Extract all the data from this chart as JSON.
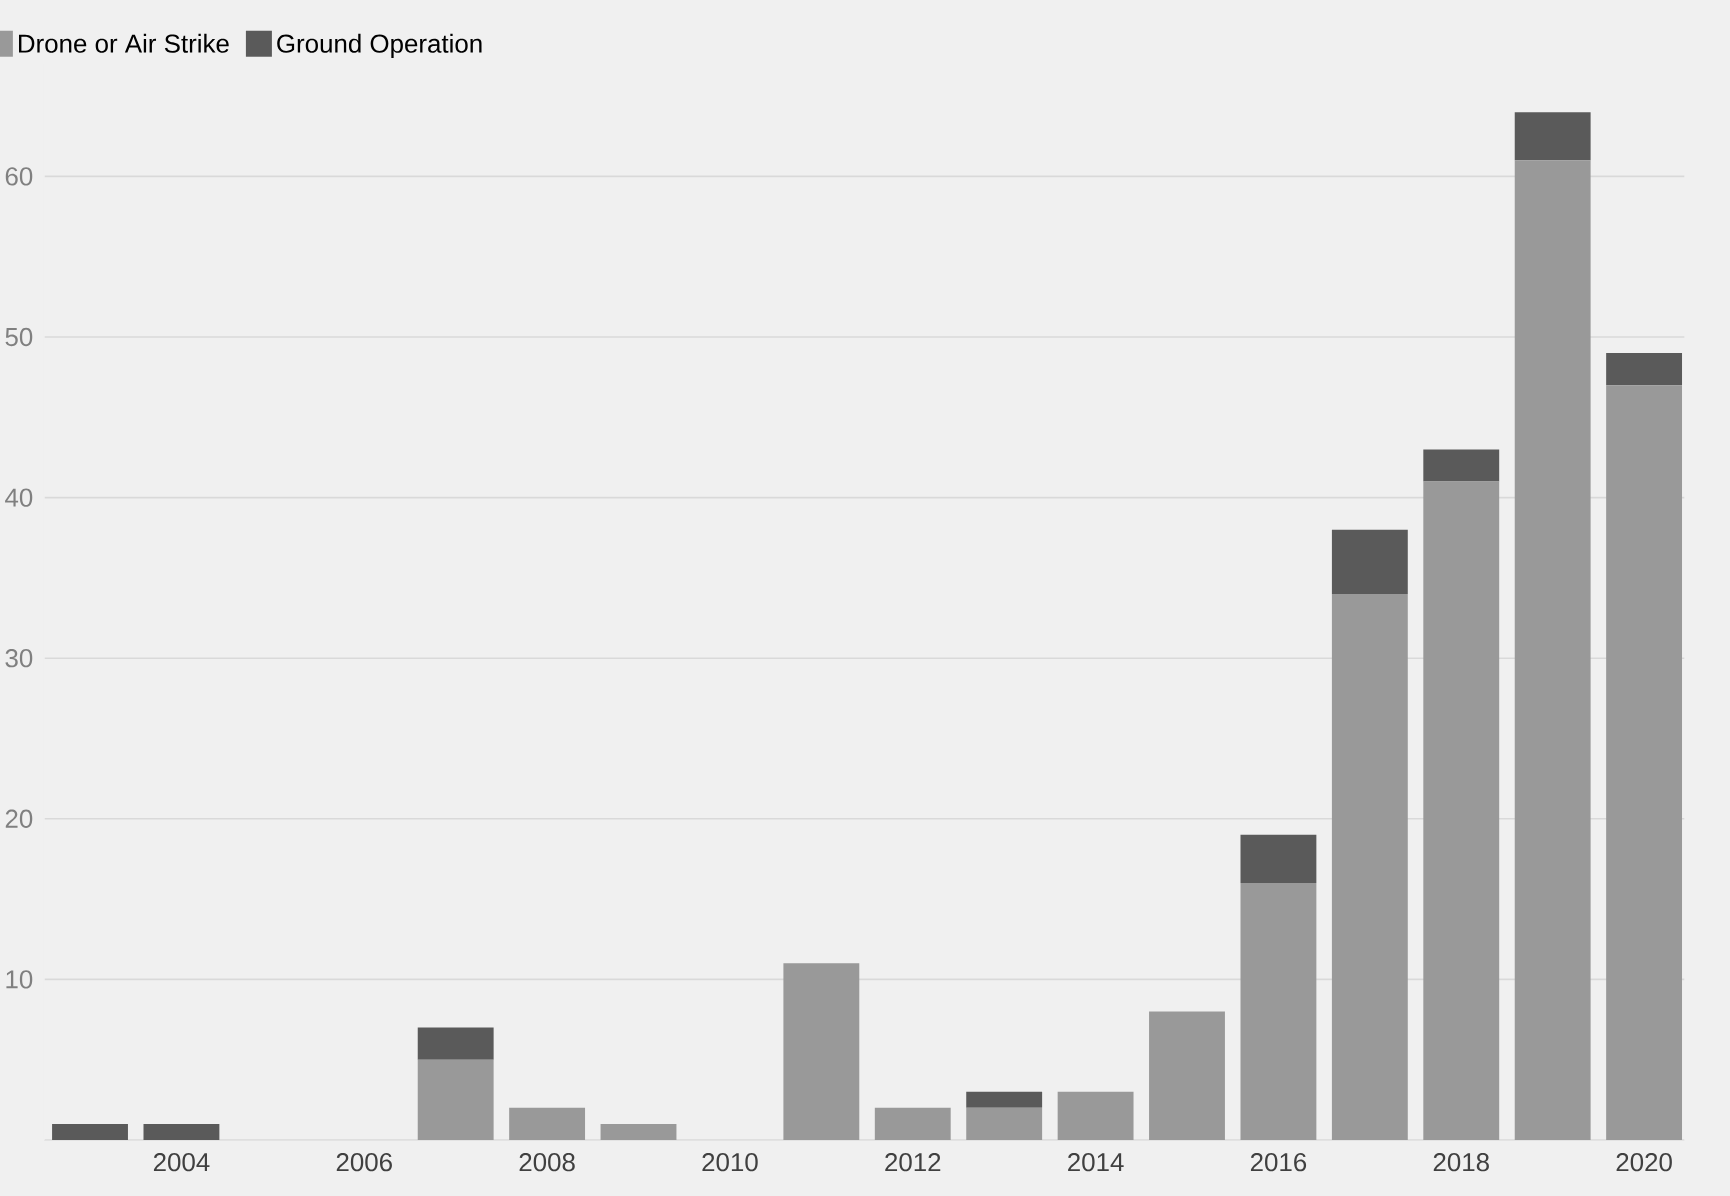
{
  "chart_data": {
    "type": "bar",
    "stacked": true,
    "categories": [
      null,
      "2004",
      null,
      "2006",
      null,
      "2008",
      null,
      "2010",
      null,
      "2012",
      null,
      "2014",
      null,
      "2016",
      null,
      "2018",
      null,
      "2020"
    ],
    "series": [
      {
        "name": "Drone or Air Strike",
        "color": "#999999",
        "values": [
          0,
          0,
          0,
          0,
          5,
          2,
          1,
          0,
          11,
          2,
          2,
          3,
          8,
          16,
          34,
          41,
          61,
          47
        ]
      },
      {
        "name": "Ground Operation",
        "color": "#5a5a5a",
        "values": [
          1,
          1,
          0,
          0,
          2,
          0,
          0,
          0,
          0,
          0,
          1,
          0,
          0,
          3,
          4,
          2,
          3,
          2
        ]
      }
    ],
    "ylim": [
      0,
      67
    ],
    "yticks": [
      10,
      20,
      30,
      40,
      50,
      60
    ],
    "grid": "y",
    "legend": "top left"
  }
}
